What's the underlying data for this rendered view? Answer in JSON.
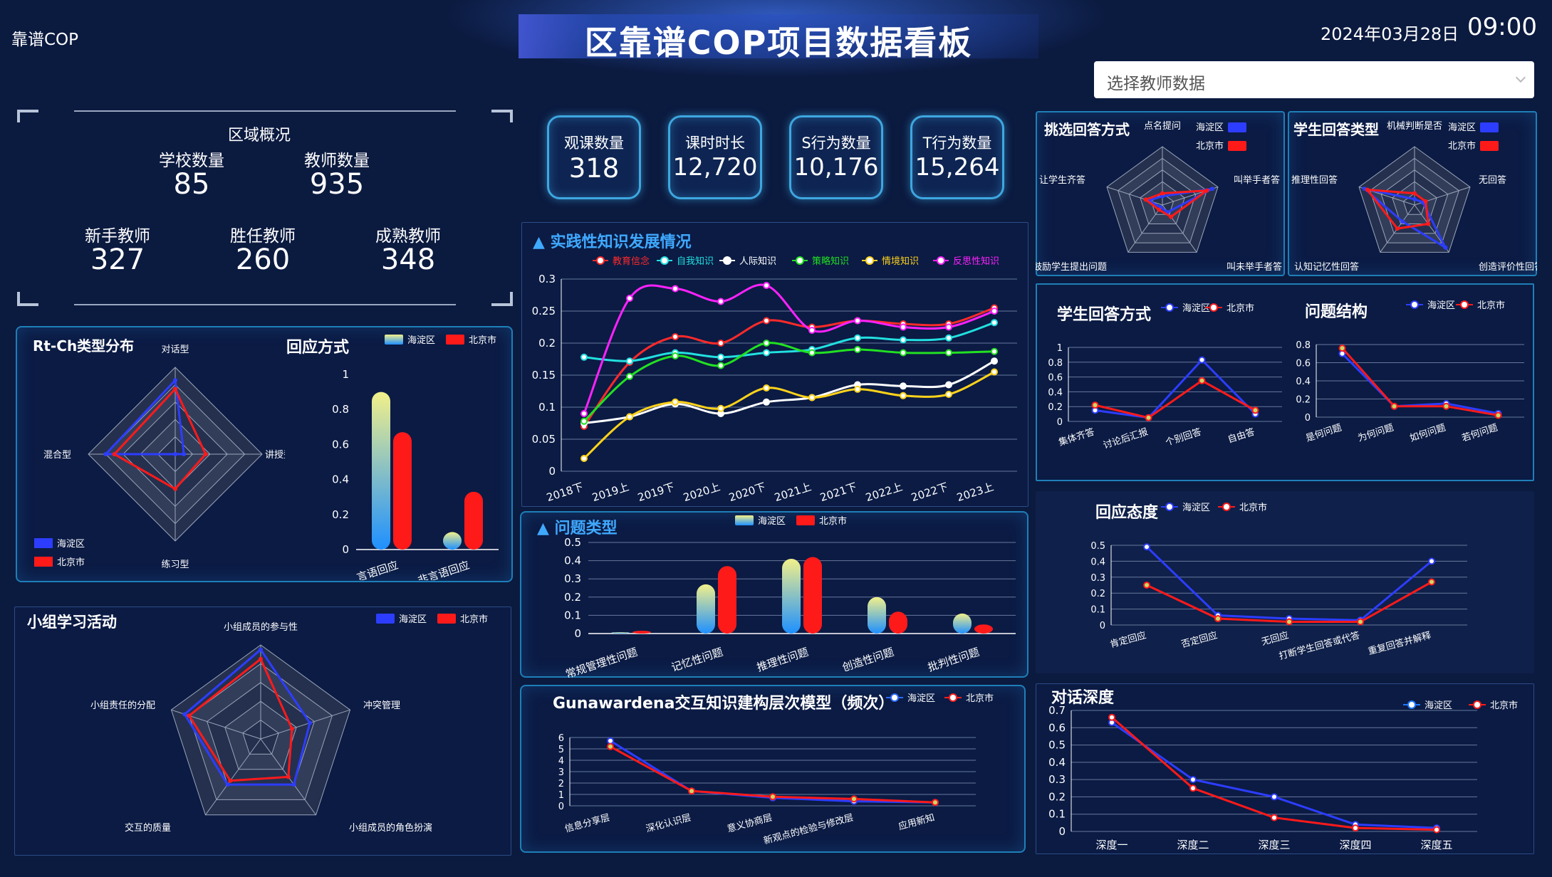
{
  "header": {
    "brand": "靠谱COP",
    "title": "区靠谱COP项目数据看板",
    "date": "2024年03月28日",
    "time": "09:00",
    "select_placeholder": "选择教师数据"
  },
  "colors": {
    "haidian": "#2d3dff",
    "beijing": "#ff1a1a",
    "accent": "#3fa9ff"
  },
  "region": {
    "title": "区域概况",
    "stats": [
      {
        "label": "学校数量",
        "value": "85"
      },
      {
        "label": "教师数量",
        "value": "935"
      },
      {
        "label": "新手教师",
        "value": "327"
      },
      {
        "label": "胜任教师",
        "value": "260"
      },
      {
        "label": "成熟教师",
        "value": "348"
      }
    ]
  },
  "kpis": [
    {
      "label": "观课数量",
      "value": "318"
    },
    {
      "label": "课时时长",
      "value": "12,720"
    },
    {
      "label": "S行为数量",
      "value": "10,176"
    },
    {
      "label": "T行为数量",
      "value": "15,264"
    }
  ],
  "legend": {
    "haidian": "海淀区",
    "beijing": "北京市"
  },
  "chart_data": [
    {
      "id": "rtch",
      "type": "radar",
      "title": "Rt-Ch类型分布",
      "indicators": [
        "对话型",
        "讲授型",
        "练习型",
        "混合型"
      ],
      "max": 1,
      "series": [
        {
          "name": "海淀区",
          "values": [
            0.85,
            0.1,
            0.0,
            0.8
          ]
        },
        {
          "name": "北京市",
          "values": [
            0.75,
            0.35,
            0.4,
            0.7
          ]
        }
      ]
    },
    {
      "id": "response",
      "type": "bar",
      "title": "回应方式",
      "categories": [
        "言语回应",
        "非言语回应"
      ],
      "ylim": [
        0,
        1
      ],
      "yticks": [
        "0",
        "0.2",
        "0.4",
        "0.6",
        "0.8",
        "1"
      ],
      "series": [
        {
          "name": "海淀区",
          "values": [
            0.9,
            0.1
          ]
        },
        {
          "name": "北京市",
          "values": [
            0.67,
            0.33
          ]
        }
      ]
    },
    {
      "id": "group",
      "type": "radar",
      "title": "小组学习活动",
      "indicators": [
        "小组成员的参与性",
        "冲突管理",
        "小组成员的角色扮演",
        "交互的质量",
        "小组责任的分配"
      ],
      "max": 1,
      "series": [
        {
          "name": "海淀区",
          "values": [
            0.95,
            0.55,
            0.6,
            0.6,
            0.85
          ]
        },
        {
          "name": "北京市",
          "values": [
            0.85,
            0.35,
            0.5,
            0.55,
            0.8
          ]
        }
      ]
    },
    {
      "id": "knowledge",
      "type": "line",
      "title": "▲ 实践性知识发展情况",
      "categories": [
        "2018下",
        "2019上",
        "2019下",
        "2020上",
        "2020下",
        "2021上",
        "2021下",
        "2022上",
        "2022下",
        "2023上"
      ],
      "ylim": [
        0,
        0.3
      ],
      "yticks": [
        "0",
        "0.05",
        "0.1",
        "0.15",
        "0.2",
        "0.25",
        "0.3"
      ],
      "series": [
        {
          "name": "教育信念",
          "color": "#ff2a2a",
          "values": [
            0.07,
            0.17,
            0.21,
            0.2,
            0.235,
            0.225,
            0.235,
            0.23,
            0.23,
            0.255
          ]
        },
        {
          "name": "自我知识",
          "color": "#22e0e0",
          "values": [
            0.178,
            0.172,
            0.185,
            0.178,
            0.185,
            0.19,
            0.208,
            0.205,
            0.208,
            0.232
          ]
        },
        {
          "name": "人际知识",
          "color": "#ffffff",
          "values": [
            0.075,
            0.085,
            0.105,
            0.09,
            0.108,
            0.115,
            0.135,
            0.133,
            0.135,
            0.172
          ]
        },
        {
          "name": "策略知识",
          "color": "#22e022",
          "values": [
            0.078,
            0.148,
            0.18,
            0.165,
            0.2,
            0.185,
            0.19,
            0.185,
            0.185,
            0.187
          ]
        },
        {
          "name": "情境知识",
          "color": "#ffd21a",
          "values": [
            0.02,
            0.085,
            0.108,
            0.098,
            0.13,
            0.115,
            0.128,
            0.118,
            0.12,
            0.155
          ]
        },
        {
          "name": "反思性知识",
          "color": "#ff22ff",
          "values": [
            0.09,
            0.27,
            0.285,
            0.265,
            0.29,
            0.22,
            0.235,
            0.225,
            0.225,
            0.25
          ]
        }
      ]
    },
    {
      "id": "qtype",
      "type": "bar",
      "title": "▲ 问题类型",
      "categories": [
        "常规管理性问题",
        "记忆性问题",
        "推理性问题",
        "创造性问题",
        "批判性问题"
      ],
      "ylim": [
        0,
        0.5
      ],
      "yticks": [
        "0",
        "0.1",
        "0.2",
        "0.3",
        "0.4",
        "0.5"
      ],
      "series": [
        {
          "name": "海淀区",
          "values": [
            0.005,
            0.27,
            0.41,
            0.2,
            0.11
          ]
        },
        {
          "name": "北京市",
          "values": [
            0.015,
            0.37,
            0.42,
            0.12,
            0.05
          ]
        }
      ]
    },
    {
      "id": "guna",
      "type": "line",
      "title": "Gunawardena交互知识建构层次模型（频次）",
      "categories": [
        "信息分享层",
        "深化认识层",
        "意义协商层",
        "新观点的检验与修改层",
        "应用新知"
      ],
      "ylim": [
        0,
        6
      ],
      "yticks": [
        "0",
        "1",
        "2",
        "3",
        "4",
        "5",
        "6"
      ],
      "series": [
        {
          "name": "海淀区",
          "values": [
            5.7,
            1.3,
            0.7,
            0.4,
            0.3
          ]
        },
        {
          "name": "北京市",
          "values": [
            5.2,
            1.3,
            0.8,
            0.6,
            0.3
          ]
        }
      ]
    },
    {
      "id": "pick",
      "type": "radar",
      "title": "挑选回答方式",
      "indicators": [
        "点名提问",
        "叫举手者答",
        "叫未举手者答",
        "鼓励学生提出问题",
        "让学生齐答"
      ],
      "max": 1,
      "series": [
        {
          "name": "海淀区",
          "values": [
            0.15,
            0.9,
            0.15,
            0.05,
            0.25
          ]
        },
        {
          "name": "北京市",
          "values": [
            0.2,
            0.8,
            0.25,
            0.1,
            0.3
          ]
        }
      ]
    },
    {
      "id": "srtype",
      "type": "radar",
      "title": "学生回答类型",
      "indicators": [
        "机械判断是否",
        "无回答",
        "创造评价性回答",
        "认知记忆性回答",
        "推理性回答"
      ],
      "max": 1,
      "series": [
        {
          "name": "海淀区",
          "values": [
            0.1,
            0.15,
            0.9,
            0.35,
            0.9
          ]
        },
        {
          "name": "北京市",
          "values": [
            0.2,
            0.2,
            0.4,
            0.5,
            0.85
          ]
        }
      ]
    },
    {
      "id": "sanswer",
      "type": "line",
      "title": "学生回答方式",
      "categories": [
        "集体齐答",
        "讨论后汇报",
        "个别回答",
        "自由答"
      ],
      "ylim": [
        0,
        1
      ],
      "yticks": [
        "0",
        "0.2",
        "0.4",
        "0.6",
        "0.8",
        "1"
      ],
      "series": [
        {
          "name": "海淀区",
          "values": [
            0.15,
            0.05,
            0.83,
            0.1
          ]
        },
        {
          "name": "北京市",
          "values": [
            0.22,
            0.05,
            0.55,
            0.15
          ]
        }
      ]
    },
    {
      "id": "qstruct",
      "type": "line",
      "title": "问题结构",
      "categories": [
        "是何问题",
        "为何问题",
        "如何问题",
        "若何问题"
      ],
      "ylim": [
        0,
        0.8
      ],
      "yticks": [
        "0",
        "0.2",
        "0.4",
        "0.6",
        "0.8"
      ],
      "series": [
        {
          "name": "海淀区",
          "values": [
            0.7,
            0.12,
            0.15,
            0.04
          ]
        },
        {
          "name": "北京市",
          "values": [
            0.76,
            0.12,
            0.12,
            0.02
          ]
        }
      ]
    },
    {
      "id": "attitude",
      "type": "line",
      "title": "回应态度",
      "categories": [
        "肯定回应",
        "否定回应",
        "无回应",
        "打断学生回答或代答",
        "重复回答并解释"
      ],
      "ylim": [
        0,
        0.5
      ],
      "yticks": [
        "0",
        "0.1",
        "0.2",
        "0.3",
        "0.4",
        "0.5"
      ],
      "series": [
        {
          "name": "海淀区",
          "values": [
            0.49,
            0.06,
            0.04,
            0.03,
            0.4
          ]
        },
        {
          "name": "北京市",
          "values": [
            0.25,
            0.04,
            0.02,
            0.02,
            0.27
          ]
        }
      ]
    },
    {
      "id": "depth",
      "type": "line",
      "title": "对话深度",
      "categories": [
        "深度一",
        "深度二",
        "深度三",
        "深度四",
        "深度五"
      ],
      "ylim": [
        0,
        0.7
      ],
      "yticks": [
        "0",
        "0.1",
        "0.2",
        "0.3",
        "0.4",
        "0.5",
        "0.6",
        "0.7"
      ],
      "series": [
        {
          "name": "海淀区",
          "values": [
            0.63,
            0.3,
            0.2,
            0.04,
            0.02
          ]
        },
        {
          "name": "北京市",
          "values": [
            0.66,
            0.25,
            0.08,
            0.02,
            0.01
          ]
        }
      ]
    }
  ]
}
